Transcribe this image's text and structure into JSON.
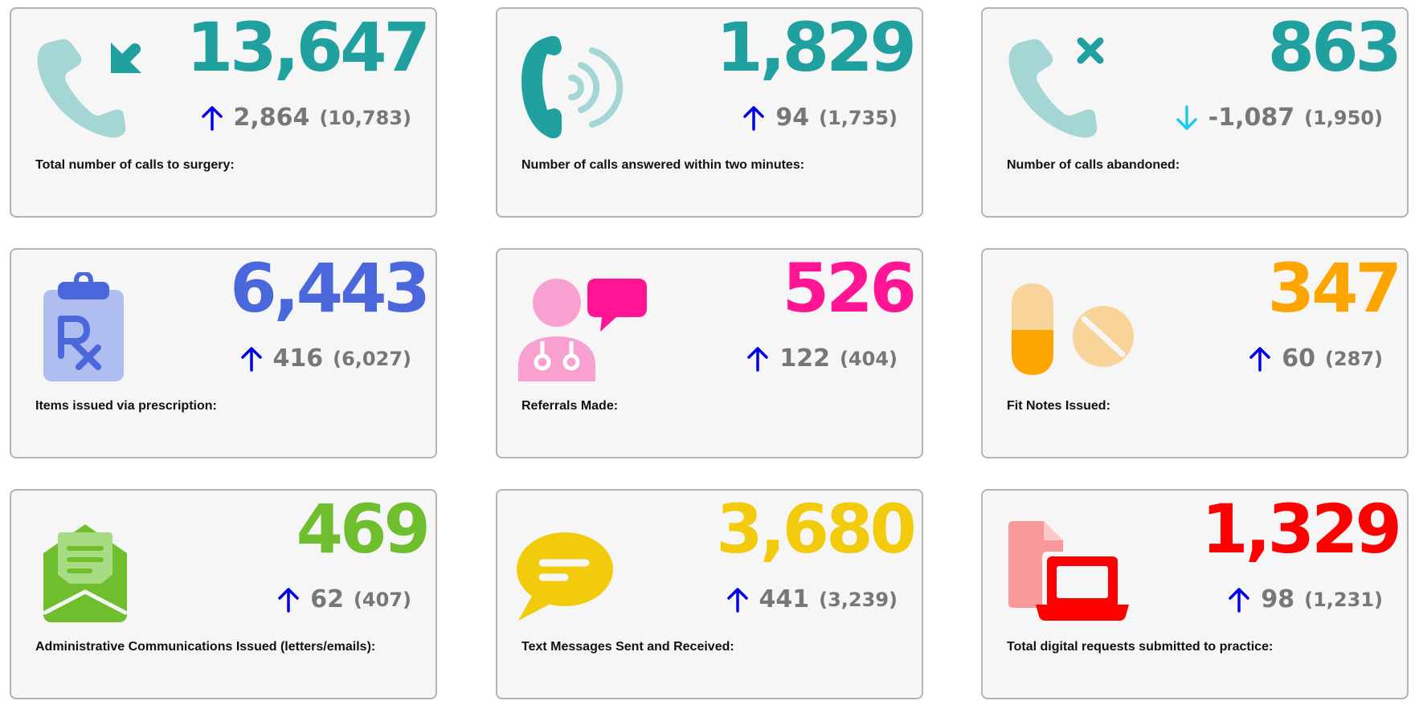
{
  "cards": [
    {
      "label": "Total number of calls to surgery:",
      "value": "13,647",
      "delta": "2,864",
      "previous": "(10,783)",
      "trend": "up",
      "value_color": "#21a0a0",
      "icon": "incoming-call-icon"
    },
    {
      "label": "Number of calls answered within two minutes:",
      "value": "1,829",
      "delta": "94",
      "previous": "(1,735)",
      "trend": "up",
      "value_color": "#21a0a0",
      "icon": "ringing-phone-icon"
    },
    {
      "label": "Number of calls abandoned:",
      "value": "863",
      "delta": "-1,087",
      "previous": "(1,950)",
      "trend": "down",
      "value_color": "#21a0a0",
      "icon": "missed-call-icon"
    },
    {
      "label": "Items issued via prescription:",
      "value": "6,443",
      "delta": "416",
      "previous": "(6,027)",
      "trend": "up",
      "value_color": "#4a67dc",
      "icon": "prescription-clipboard-icon"
    },
    {
      "label": "Referrals Made:",
      "value": "526",
      "delta": "122",
      "previous": "(404)",
      "trend": "up",
      "value_color": "#ff1493",
      "icon": "doctor-referral-icon"
    },
    {
      "label": "Fit Notes Issued:",
      "value": "347",
      "delta": "60",
      "previous": "(287)",
      "trend": "up",
      "value_color": "#ffa500",
      "icon": "pills-icon"
    },
    {
      "label": "Administrative Communications Issued (letters/emails):",
      "value": "469",
      "delta": "62",
      "previous": "(407)",
      "trend": "up",
      "value_color": "#6ebe2d",
      "icon": "open-envelope-icon"
    },
    {
      "label": "Text Messages Sent and Received:",
      "value": "3,680",
      "delta": "441",
      "previous": "(3,239)",
      "trend": "up",
      "value_color": "#f2cc0c",
      "icon": "speech-bubble-icon"
    },
    {
      "label": "Total digital requests submitted to practice:",
      "value": "1,329",
      "delta": "98",
      "previous": "(1,231)",
      "trend": "up",
      "value_color": "#ff0000",
      "icon": "digital-request-laptop-icon"
    }
  ],
  "colors": {
    "trend_up": "#0000e6",
    "trend_down": "#1ec8f0",
    "secondary_text": "#777777",
    "card_background": "#f6f6f6",
    "card_border": "#b3b3b3"
  }
}
